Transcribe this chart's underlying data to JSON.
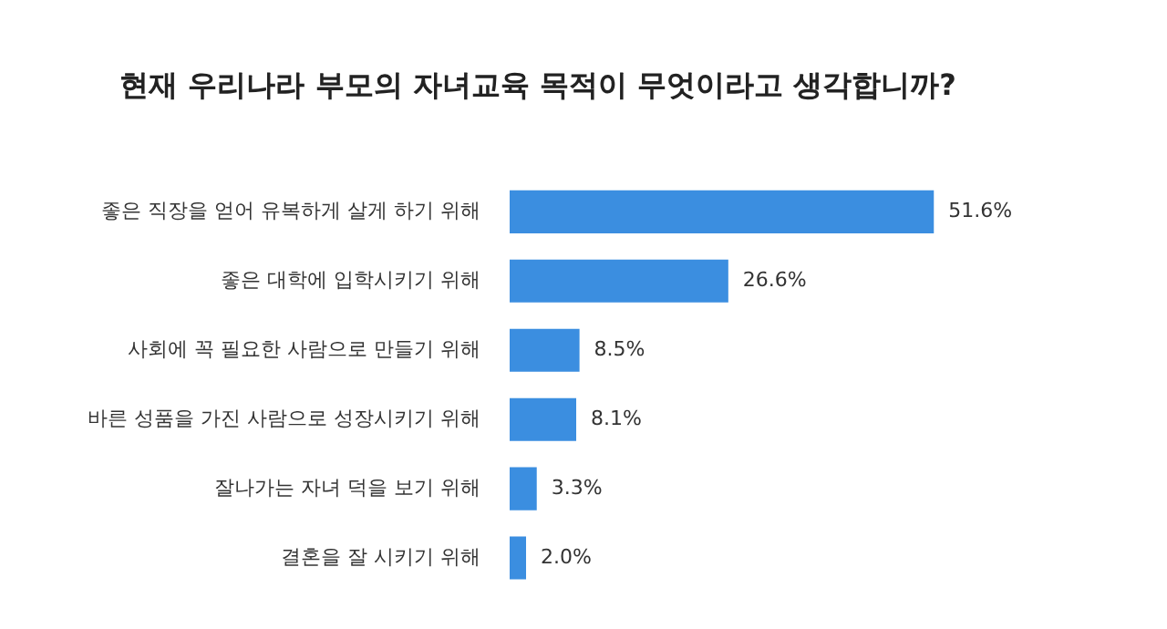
{
  "chart_data": {
    "type": "bar",
    "orientation": "horizontal",
    "title": "현재 우리나라 부모의 자녀교육 목적이 무엇이라고 생각합니까?",
    "categories": [
      "좋은 직장을 얻어 유복하게 살게 하기 위해",
      "좋은 대학에 입학시키기 위해",
      "사회에 꼭 필요한 사람으로 만들기 위해",
      "바른 성품을 가진 사람으로 성장시키기 위해",
      "잘나가는 자녀 덕을 보기 위해",
      "결혼을 잘 시키기 위해"
    ],
    "values": [
      51.6,
      26.6,
      8.5,
      8.1,
      3.3,
      2.0
    ],
    "value_labels": [
      "51.6%",
      "26.6%",
      "8.5%",
      "8.1%",
      "3.3%",
      "2.0%"
    ],
    "color": "#3b8ee0"
  }
}
